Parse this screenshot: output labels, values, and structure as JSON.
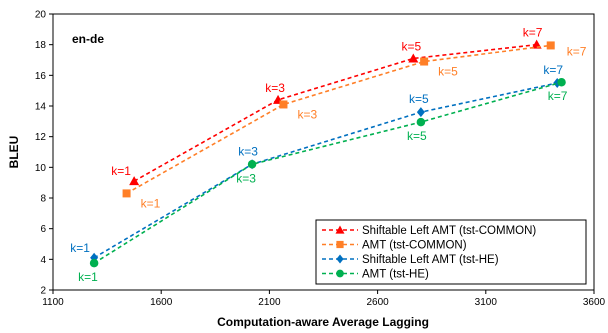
{
  "chart_data": {
    "type": "line",
    "panel_label": "en-de",
    "xlabel": "Computation-aware Average Lagging",
    "ylabel": "BLEU",
    "xlim": [
      1100,
      3600
    ],
    "ylim": [
      2,
      20
    ],
    "x_ticks": [
      "1100",
      "1600",
      "2100",
      "2600",
      "3100",
      "3600"
    ],
    "y_ticks": [
      "2",
      "4",
      "6",
      "8",
      "10",
      "12",
      "14",
      "16",
      "18",
      "20"
    ],
    "grid": false,
    "legend_position": "bottom-right",
    "series": [
      {
        "name": "Shiftable Left AMT (tst-COMMON)",
        "color": "#ff0000",
        "marker": "triangle",
        "points": [
          {
            "x": 1475,
            "y": 9.1,
            "label": "k=1"
          },
          {
            "x": 2140,
            "y": 14.4,
            "label": "k=3"
          },
          {
            "x": 2765,
            "y": 17.1,
            "label": "k=5"
          },
          {
            "x": 3335,
            "y": 18.0,
            "label": "k=7"
          }
        ]
      },
      {
        "name": "AMT (tst-COMMON)",
        "color": "#ff7f27",
        "marker": "square",
        "points": [
          {
            "x": 1440,
            "y": 8.3,
            "label": "k=1"
          },
          {
            "x": 2165,
            "y": 14.1,
            "label": "k=3"
          },
          {
            "x": 2815,
            "y": 16.9,
            "label": "k=5"
          },
          {
            "x": 3400,
            "y": 17.95,
            "label": "k=7"
          }
        ]
      },
      {
        "name": "Shiftable Left AMT (tst-HE)",
        "color": "#0070c0",
        "marker": "diamond",
        "points": [
          {
            "x": 1290,
            "y": 4.1,
            "label": "k=1"
          },
          {
            "x": 2020,
            "y": 10.2,
            "label": "k=3"
          },
          {
            "x": 2800,
            "y": 13.6,
            "label": "k=5"
          },
          {
            "x": 3430,
            "y": 15.5,
            "label": "k=7"
          }
        ]
      },
      {
        "name": "AMT (tst-HE)",
        "color": "#00b050",
        "marker": "circle",
        "points": [
          {
            "x": 1290,
            "y": 3.75,
            "label": "k=1"
          },
          {
            "x": 2020,
            "y": 10.2,
            "label": "k=3"
          },
          {
            "x": 2800,
            "y": 12.95,
            "label": "k=5"
          },
          {
            "x": 3450,
            "y": 15.55,
            "label": "k=7"
          }
        ]
      }
    ]
  }
}
